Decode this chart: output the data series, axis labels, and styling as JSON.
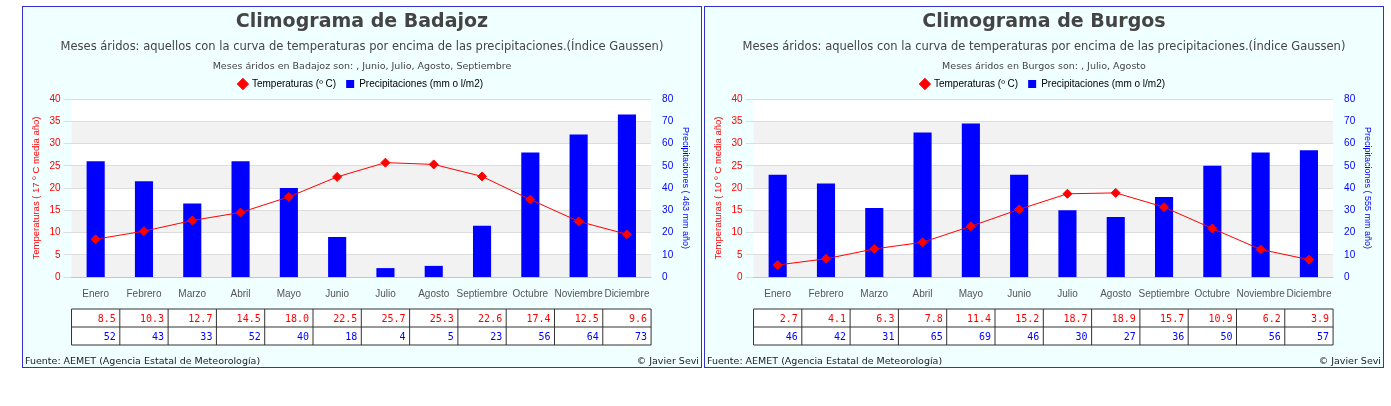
{
  "chart_data": [
    {
      "type": "bar",
      "title": "Climograma de Badajoz",
      "subtitle": "Meses áridos: aquellos con la curva de temperaturas por encima de las precipitaciones.(Índice Gaussen)",
      "annotations": [
        "Meses áridos en Badajoz son: , Junio, Julio, Agosto, Septiembre",
        "Fuente: AEMET (Agencia Estatal de Meteorología)",
        "© Javier Sevi"
      ],
      "ylabel": "Temperaturas ( 17 º C media año)",
      "y2label": "Precipitaciones ( 463 mm año)",
      "categories": [
        "Enero",
        "Febrero",
        "Marzo",
        "Abril",
        "Mayo",
        "Junio",
        "Julio",
        "Agosto",
        "Septiembre",
        "Octubre",
        "Noviembre",
        "Diciembre"
      ],
      "series": [
        {
          "name": "Temperaturas (º C)",
          "type": "line",
          "color": "#ff0000",
          "values": [
            8.5,
            10.3,
            12.7,
            14.5,
            18.0,
            22.5,
            25.7,
            25.3,
            22.6,
            17.4,
            12.5,
            9.6
          ],
          "value_labels": [
            "8.5",
            "10.3",
            "12.7",
            "14.5",
            "18.0",
            "22.5",
            "25.7",
            "25.3",
            "22.6",
            "17.4",
            "12.5",
            "9.6"
          ]
        },
        {
          "name": "Precipitaciones (mm o l/m2)",
          "axis": "y2",
          "color": "#0000ff",
          "values": [
            52,
            43,
            33,
            52,
            40,
            18,
            4,
            5,
            23,
            56,
            64,
            73
          ],
          "value_labels": [
            "52",
            "43",
            "33",
            "52",
            "40",
            "18",
            "4",
            "5",
            "23",
            "56",
            "64",
            "73"
          ]
        }
      ],
      "ylim": [
        0,
        40
      ],
      "yticks": [
        0,
        5,
        10,
        15,
        20,
        25,
        30,
        35,
        40
      ],
      "y2lim": [
        0,
        80
      ],
      "y2ticks": [
        0,
        10,
        20,
        30,
        40,
        50,
        60,
        70,
        80
      ],
      "grid": "y",
      "legend": "top",
      "marker": "diamond"
    },
    {
      "type": "bar",
      "title": "Climograma de Burgos",
      "subtitle": "Meses áridos: aquellos con la curva de temperaturas por encima de las precipitaciones.(Índice Gaussen)",
      "annotations": [
        "Meses áridos en Burgos son: , Julio, Agosto",
        "Fuente: AEMET (Agencia Estatal de Meteorología)",
        "© Javier Sevi"
      ],
      "ylabel": "Temperaturas ( 10 º C media año)",
      "y2label": "Precipitaciones ( 555 mm año)",
      "categories": [
        "Enero",
        "Febrero",
        "Marzo",
        "Abril",
        "Mayo",
        "Junio",
        "Julio",
        "Agosto",
        "Septiembre",
        "Octubre",
        "Noviembre",
        "Diciembre"
      ],
      "series": [
        {
          "name": "Temperaturas (º C)",
          "type": "line",
          "color": "#ff0000",
          "values": [
            2.7,
            4.1,
            6.3,
            7.8,
            11.4,
            15.2,
            18.7,
            18.9,
            15.7,
            10.9,
            6.2,
            3.9
          ],
          "value_labels": [
            "2.7",
            "4.1",
            "6.3",
            "7.8",
            "11.4",
            "15.2",
            "18.7",
            "18.9",
            "15.7",
            "10.9",
            "6.2",
            "3.9"
          ]
        },
        {
          "name": "Precipitaciones (mm o l/m2)",
          "axis": "y2",
          "color": "#0000ff",
          "values": [
            46,
            42,
            31,
            65,
            69,
            46,
            30,
            27,
            36,
            50,
            56,
            57
          ],
          "value_labels": [
            "46",
            "42",
            "31",
            "65",
            "69",
            "46",
            "30",
            "27",
            "36",
            "50",
            "56",
            "57"
          ]
        }
      ],
      "ylim": [
        0,
        40
      ],
      "yticks": [
        0,
        5,
        10,
        15,
        20,
        25,
        30,
        35,
        40
      ],
      "y2lim": [
        0,
        80
      ],
      "y2ticks": [
        0,
        10,
        20,
        30,
        40,
        50,
        60,
        70,
        80
      ],
      "grid": "y",
      "legend": "top",
      "marker": "diamond"
    }
  ]
}
